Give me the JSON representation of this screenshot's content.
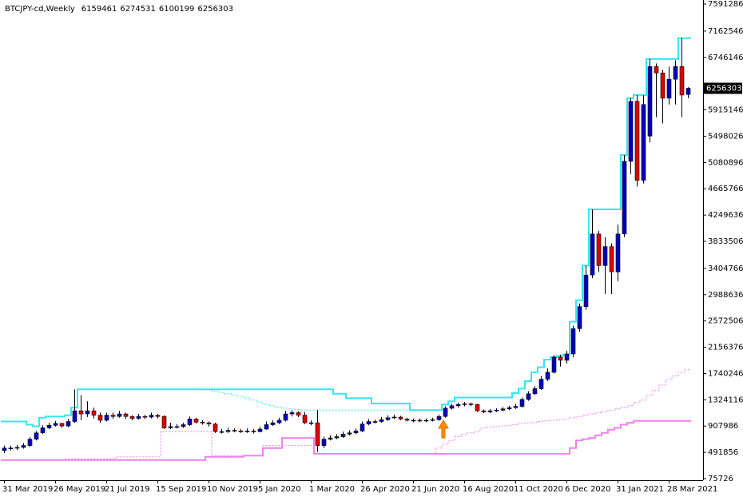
{
  "chart_data": {
    "type": "candlestick",
    "title": "BTCJPY-cd,Weekly",
    "categories": [
      "31 Mar 2019",
      null,
      null,
      null,
      null,
      null,
      null,
      null,
      "26 May 2019",
      null,
      null,
      null,
      null,
      null,
      null,
      null,
      "21 Jul 2019",
      null,
      null,
      null,
      null,
      null,
      null,
      null,
      "15 Sep 2019",
      null,
      null,
      null,
      null,
      null,
      null,
      null,
      "10 Nov 2019",
      null,
      null,
      null,
      null,
      null,
      null,
      null,
      "5 Jan 2020",
      null,
      null,
      null,
      null,
      null,
      null,
      null,
      "1 Mar 2020",
      null,
      null,
      null,
      null,
      null,
      null,
      null,
      "26 Apr 2020",
      null,
      null,
      null,
      null,
      null,
      null,
      null,
      "21 Jun 2020",
      null,
      null,
      null,
      null,
      null,
      null,
      null,
      "16 Aug 2020",
      null,
      null,
      null,
      null,
      null,
      null,
      null,
      "11 Oct 2020",
      null,
      null,
      null,
      null,
      null,
      null,
      null,
      "6 Dec 2020",
      null,
      null,
      null,
      null,
      null,
      null,
      null,
      "31 Jan 2021",
      null,
      null,
      null,
      null,
      null,
      null,
      null,
      "28 Mar 2021",
      null,
      null,
      null
    ],
    "open": [
      520000,
      560000,
      560000,
      570000,
      600000,
      700000,
      800000,
      880000,
      920000,
      950000,
      910000,
      980000,
      1150000,
      1100000,
      1150000,
      1080000,
      1000000,
      1080000,
      1060000,
      1100000,
      1060000,
      1030000,
      1060000,
      1050000,
      1080000,
      1060000,
      880000,
      900000,
      900000,
      930000,
      1020000,
      970000,
      960000,
      940000,
      820000,
      820000,
      840000,
      830000,
      820000,
      830000,
      820000,
      860000,
      930000,
      960000,
      1000000,
      1100000,
      1120000,
      1080000,
      960000,
      960000,
      600000,
      700000,
      720000,
      740000,
      780000,
      800000,
      830000,
      940000,
      980000,
      980000,
      1010000,
      1040000,
      1050000,
      1020000,
      1000000,
      1000000,
      990000,
      1000000,
      1010000,
      1060000,
      1190000,
      1230000,
      1250000,
      1260000,
      1250000,
      1150000,
      1130000,
      1150000,
      1160000,
      1180000,
      1200000,
      1220000,
      1330000,
      1420000,
      1500000,
      1650000,
      1760000,
      2000000,
      1950000,
      2050000,
      2450000,
      2800000,
      3300000,
      3950000,
      3450000,
      3750000,
      3350000,
      3950000,
      5100000,
      6050000,
      4800000,
      5500000,
      6600000,
      6500000,
      6100000,
      6400000,
      6600000,
      6159461
    ],
    "high": [
      600000,
      600000,
      610000,
      640000,
      730000,
      830000,
      920000,
      960000,
      990000,
      960000,
      1020000,
      1490000,
      1400000,
      1300000,
      1200000,
      1120000,
      1120000,
      1120000,
      1150000,
      1120000,
      1080000,
      1100000,
      1090000,
      1120000,
      1100000,
      1080000,
      960000,
      940000,
      960000,
      1060000,
      1040000,
      1000000,
      980000,
      960000,
      860000,
      880000,
      870000,
      860000,
      870000,
      860000,
      900000,
      980000,
      1000000,
      1040000,
      1150000,
      1160000,
      1140000,
      1130000,
      1000000,
      1160000,
      740000,
      760000,
      780000,
      820000,
      840000,
      870000,
      980000,
      1020000,
      1010000,
      1050000,
      1080000,
      1090000,
      1070000,
      1040000,
      1030000,
      1030000,
      1030000,
      1040000,
      1090000,
      1220000,
      1260000,
      1280000,
      1290000,
      1280000,
      1260000,
      1170000,
      1180000,
      1190000,
      1210000,
      1230000,
      1260000,
      1360000,
      1460000,
      1540000,
      1700000,
      1820000,
      2030000,
      2040000,
      2100000,
      2500000,
      2850000,
      3450000,
      4340000,
      4000000,
      3900000,
      3800000,
      4100000,
      5200000,
      6100000,
      6150000,
      6150000,
      6720000,
      6650000,
      6550000,
      6600000,
      6700000,
      7050000,
      6274531
    ],
    "low": [
      480000,
      520000,
      530000,
      550000,
      580000,
      680000,
      780000,
      860000,
      900000,
      880000,
      890000,
      960000,
      1000000,
      1050000,
      1030000,
      960000,
      980000,
      1020000,
      1040000,
      1020000,
      1000000,
      1010000,
      1020000,
      1030000,
      1030000,
      860000,
      860000,
      870000,
      880000,
      910000,
      950000,
      930000,
      900000,
      800000,
      790000,
      800000,
      810000,
      800000,
      800000,
      790000,
      810000,
      850000,
      910000,
      940000,
      980000,
      1060000,
      1050000,
      940000,
      920000,
      500000,
      560000,
      680000,
      700000,
      720000,
      760000,
      780000,
      810000,
      920000,
      950000,
      960000,
      990000,
      1020000,
      1000000,
      980000,
      970000,
      970000,
      970000,
      980000,
      990000,
      1040000,
      1170000,
      1200000,
      1220000,
      1220000,
      1130000,
      1110000,
      1110000,
      1130000,
      1140000,
      1160000,
      1180000,
      1200000,
      1310000,
      1400000,
      1480000,
      1620000,
      1740000,
      1850000,
      1900000,
      2000000,
      2400000,
      2750000,
      3250000,
      3350000,
      3000000,
      3000000,
      3200000,
      3900000,
      4900000,
      4700000,
      4750000,
      5400000,
      5800000,
      5700000,
      6000000,
      6000000,
      5800000,
      6100199
    ],
    "close": [
      560000,
      560000,
      570000,
      600000,
      700000,
      800000,
      880000,
      920000,
      950000,
      910000,
      980000,
      1150000,
      1100000,
      1150000,
      1080000,
      1000000,
      1080000,
      1060000,
      1100000,
      1060000,
      1030000,
      1060000,
      1050000,
      1080000,
      1060000,
      880000,
      900000,
      900000,
      930000,
      1020000,
      970000,
      960000,
      940000,
      820000,
      820000,
      840000,
      830000,
      820000,
      830000,
      820000,
      860000,
      930000,
      960000,
      1000000,
      1100000,
      1120000,
      1080000,
      960000,
      960000,
      600000,
      700000,
      720000,
      740000,
      780000,
      800000,
      830000,
      940000,
      980000,
      980000,
      1010000,
      1040000,
      1050000,
      1020000,
      1000000,
      1000000,
      990000,
      1000000,
      1010000,
      1060000,
      1190000,
      1230000,
      1250000,
      1260000,
      1250000,
      1150000,
      1130000,
      1150000,
      1160000,
      1180000,
      1200000,
      1220000,
      1330000,
      1420000,
      1500000,
      1650000,
      1760000,
      2000000,
      1950000,
      2050000,
      2450000,
      2800000,
      3300000,
      3950000,
      3450000,
      3750000,
      3350000,
      3950000,
      5100000,
      6050000,
      4800000,
      6000000,
      6600000,
      6500000,
      6100000,
      6400000,
      6600000,
      6150000,
      6256303
    ],
    "up_color": "#0000c0",
    "down_color": "#e00000",
    "overlays": [
      {
        "color": "#33e6f2",
        "style": "solid",
        "values": [
          980000,
          980000,
          980000,
          980000,
          930000,
          905000,
          1040000,
          1060000,
          1060000,
          1060000,
          1080000,
          1200000,
          1490000,
          1490000,
          1490000,
          1490000,
          1490000,
          1490000,
          1490000,
          1490000,
          1490000,
          1490000,
          1490000,
          1490000,
          1490000,
          1490000,
          1490000,
          1490000,
          1490000,
          1490000,
          1490000,
          1490000,
          1490000,
          1490000,
          1490000,
          1490000,
          1490000,
          1490000,
          1490000,
          1490000,
          1490000,
          1490000,
          1490000,
          1490000,
          1490000,
          1490000,
          1490000,
          1490000,
          1490000,
          1490000,
          1490000,
          1490000,
          1420000,
          1420000,
          1350000,
          1350000,
          1350000,
          1350000,
          1265000,
          1265000,
          1265000,
          1265000,
          1265000,
          1265000,
          1160000,
          1160000,
          1160000,
          1160000,
          1160000,
          1250000,
          1300000,
          1360000,
          1360000,
          1360000,
          1360000,
          1360000,
          1360000,
          1360000,
          1360000,
          1360000,
          1430000,
          1500000,
          1620000,
          1760000,
          1840000,
          1960000,
          2000000,
          2020000,
          2040000,
          2560000,
          2900000,
          3450000,
          4340000,
          4340000,
          4340000,
          4340000,
          4340000,
          5200000,
          6100000,
          6150000,
          6150000,
          6720000,
          6720000,
          6720000,
          6720000,
          6720000,
          7050000,
          7050000
        ]
      },
      {
        "color": "#ee82ee",
        "style": "solid",
        "values": [
          370000,
          370000,
          370000,
          370000,
          370000,
          370000,
          370000,
          370000,
          370000,
          370000,
          370000,
          370000,
          370000,
          370000,
          370000,
          370000,
          370000,
          370000,
          370000,
          370000,
          370000,
          370000,
          370000,
          370000,
          370000,
          370000,
          370000,
          370000,
          370000,
          370000,
          370000,
          370000,
          420000,
          420000,
          420000,
          420000,
          420000,
          420000,
          440000,
          440000,
          440000,
          560000,
          560000,
          560000,
          720000,
          720000,
          720000,
          720000,
          720000,
          470000,
          470000,
          470000,
          470000,
          470000,
          470000,
          470000,
          470000,
          470000,
          470000,
          470000,
          470000,
          470000,
          470000,
          470000,
          470000,
          470000,
          470000,
          470000,
          470000,
          470000,
          470000,
          470000,
          470000,
          470000,
          470000,
          470000,
          470000,
          470000,
          470000,
          470000,
          470000,
          470000,
          470000,
          470000,
          470000,
          470000,
          470000,
          470000,
          470000,
          560000,
          680000,
          700000,
          720000,
          760000,
          800000,
          850000,
          880000,
          930000,
          960000,
          990000,
          990000,
          990000,
          990000,
          990000,
          990000,
          990000,
          990000,
          990000
        ]
      },
      {
        "color": "#33e6f2",
        "style": "dotted",
        "values": [
          null,
          null,
          null,
          null,
          null,
          null,
          null,
          null,
          null,
          null,
          null,
          null,
          null,
          null,
          null,
          null,
          null,
          null,
          null,
          null,
          null,
          null,
          null,
          null,
          null,
          null,
          null,
          null,
          null,
          null,
          null,
          null,
          1480000,
          1460000,
          1440000,
          1420000,
          1400000,
          1380000,
          1350000,
          1320000,
          1290000,
          1250000,
          1230000,
          1200000,
          1190000,
          1180000,
          1170000,
          1160000,
          1160000,
          1160000,
          1160000,
          1160000,
          1160000,
          1160000,
          1160000,
          1160000,
          1160000,
          1160000,
          1160000,
          1160000,
          1160000,
          1160000,
          1160000,
          1160000,
          1160000,
          1160000,
          1160000,
          1160000,
          1160000,
          null,
          null,
          null,
          null,
          null,
          null,
          null,
          null,
          null,
          null,
          null,
          null,
          null,
          null,
          null,
          null,
          null,
          null,
          null,
          null,
          null,
          null,
          null,
          null,
          null,
          null,
          null,
          null,
          null,
          null,
          null,
          null,
          null,
          null,
          null,
          null,
          null,
          null,
          null,
          null
        ]
      },
      {
        "color": "#ee82ee",
        "style": "dotted",
        "values": [
          null,
          null,
          null,
          null,
          null,
          null,
          null,
          null,
          null,
          null,
          390000,
          390000,
          390000,
          390000,
          390000,
          390000,
          390000,
          390000,
          420000,
          420000,
          420000,
          420000,
          420000,
          420000,
          420000,
          820000,
          820000,
          820000,
          820000,
          820000,
          820000,
          820000,
          820000,
          440000,
          440000,
          440000,
          440000,
          440000,
          440000,
          440000,
          440000,
          600000,
          600000,
          600000,
          600000,
          600000,
          600000,
          600000,
          600000,
          470000,
          470000,
          470000,
          470000,
          470000,
          470000,
          470000,
          470000,
          470000,
          470000,
          470000,
          470000,
          470000,
          470000,
          470000,
          470000,
          470000,
          470000,
          470000,
          560000,
          620000,
          680000,
          740000,
          780000,
          800000,
          820000,
          880000,
          890000,
          900000,
          910000,
          920000,
          930000,
          950000,
          960000,
          970000,
          980000,
          990000,
          1000000,
          1010000,
          1020000,
          1040000,
          1060000,
          1080000,
          1100000,
          1120000,
          1140000,
          1160000,
          1180000,
          1200000,
          1230000,
          1280000,
          1320000,
          1400000,
          1470000,
          1560000,
          1640000,
          1700000,
          1760000,
          1800000
        ]
      }
    ],
    "ylim": [
      50421,
      7654646
    ],
    "yticks": [
      7591286,
      7162546,
      6746146,
      5915146,
      5498026,
      5080896,
      4665766,
      4249636,
      3833506,
      3404766,
      2988636,
      2572506,
      2156376,
      1740246,
      1324116,
      907986,
      491856,
      75726
    ],
    "grid": false
  }
}
